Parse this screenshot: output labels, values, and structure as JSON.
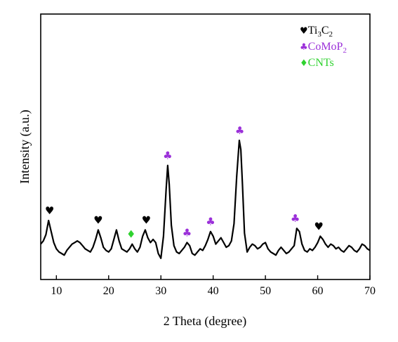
{
  "chart_data": {
    "type": "line",
    "xlabel": "2 Theta (degree)",
    "ylabel": "Intensity (a.u.)",
    "xlim": [
      7,
      70
    ],
    "xticks": [
      10,
      20,
      30,
      40,
      50,
      60,
      70
    ],
    "yticks_shown": false,
    "grid": false,
    "legend_position": "top-right",
    "legend": [
      {
        "symbol": "♥",
        "label_main": "Ti",
        "sub1": "3",
        "label_mid": "C",
        "sub2": "2",
        "color": "#000000"
      },
      {
        "symbol": "♣",
        "label_main": "CoMoP",
        "sub1": "2",
        "label_mid": "",
        "sub2": "",
        "color": "#9b30d9"
      },
      {
        "symbol": "♦",
        "label_main": "CNTs",
        "sub1": "",
        "label_mid": "",
        "sub2": "",
        "color": "#2fd22f"
      }
    ],
    "series": [
      {
        "color": "#000000",
        "x": [
          7.0,
          7.5,
          8.0,
          8.5,
          9.0,
          9.5,
          10.0,
          10.5,
          11.0,
          11.5,
          12.0,
          12.5,
          13.0,
          13.5,
          14.0,
          14.5,
          15.0,
          15.5,
          16.0,
          16.5,
          17.0,
          17.5,
          18.0,
          18.5,
          19.0,
          19.5,
          20.0,
          20.5,
          21.0,
          21.5,
          22.0,
          22.5,
          23.0,
          23.5,
          24.0,
          24.5,
          25.0,
          25.5,
          26.0,
          26.5,
          27.0,
          27.5,
          28.0,
          28.5,
          29.0,
          29.5,
          30.0,
          30.5,
          31.0,
          31.3,
          31.6,
          32.0,
          32.5,
          33.0,
          33.5,
          34.0,
          34.5,
          35.0,
          35.5,
          36.0,
          36.5,
          37.0,
          37.5,
          38.0,
          38.5,
          39.0,
          39.5,
          40.0,
          40.5,
          41.0,
          41.5,
          42.0,
          42.5,
          43.0,
          43.5,
          44.0,
          44.5,
          45.0,
          45.3,
          45.6,
          46.0,
          46.5,
          47.0,
          47.5,
          48.0,
          48.5,
          49.0,
          49.5,
          50.0,
          50.5,
          51.0,
          51.5,
          52.0,
          52.5,
          53.0,
          53.5,
          54.0,
          54.5,
          55.0,
          55.5,
          56.0,
          56.5,
          57.0,
          57.5,
          58.0,
          58.5,
          59.0,
          59.5,
          60.0,
          60.5,
          61.0,
          61.5,
          62.0,
          62.5,
          63.0,
          63.5,
          64.0,
          64.5,
          65.0,
          65.5,
          66.0,
          66.5,
          67.0,
          67.5,
          68.0,
          68.5,
          69.0,
          69.5,
          70.0
        ],
        "y": [
          20,
          24,
          32,
          50,
          36,
          22,
          14,
          10,
          8,
          6,
          12,
          16,
          20,
          22,
          24,
          22,
          18,
          14,
          12,
          10,
          16,
          26,
          38,
          28,
          16,
          12,
          10,
          14,
          26,
          38,
          24,
          14,
          12,
          10,
          14,
          20,
          14,
          10,
          16,
          30,
          38,
          28,
          22,
          26,
          22,
          8,
          2,
          30,
          90,
          120,
          96,
          44,
          18,
          10,
          8,
          12,
          16,
          22,
          18,
          8,
          6,
          10,
          14,
          12,
          18,
          26,
          36,
          30,
          20,
          24,
          28,
          22,
          16,
          18,
          24,
          46,
          106,
          152,
          140,
          96,
          34,
          10,
          16,
          20,
          18,
          14,
          16,
          20,
          22,
          14,
          10,
          8,
          6,
          12,
          16,
          12,
          8,
          10,
          14,
          18,
          40,
          36,
          20,
          12,
          10,
          14,
          12,
          16,
          22,
          30,
          26,
          20,
          16,
          20,
          18,
          14,
          16,
          12,
          10,
          14,
          18,
          16,
          12,
          10,
          14,
          20,
          18,
          14,
          12
        ]
      }
    ],
    "peak_markers": [
      {
        "symbol": "♥",
        "x": 8.7,
        "y": 50,
        "color": "#000000"
      },
      {
        "symbol": "♥",
        "x": 18.0,
        "y": 38,
        "color": "#000000"
      },
      {
        "symbol": "♦",
        "x": 24.3,
        "y": 20,
        "color": "#2fd22f"
      },
      {
        "symbol": "♥",
        "x": 27.2,
        "y": 38,
        "color": "#000000"
      },
      {
        "symbol": "♣",
        "x": 31.3,
        "y": 120,
        "color": "#9b30d9"
      },
      {
        "symbol": "♣",
        "x": 35.0,
        "y": 22,
        "color": "#9b30d9"
      },
      {
        "symbol": "♣",
        "x": 39.5,
        "y": 36,
        "color": "#9b30d9"
      },
      {
        "symbol": "♣",
        "x": 45.1,
        "y": 152,
        "color": "#9b30d9"
      },
      {
        "symbol": "♣",
        "x": 55.7,
        "y": 40,
        "color": "#9b30d9"
      },
      {
        "symbol": "♥",
        "x": 60.2,
        "y": 30,
        "color": "#000000"
      }
    ]
  }
}
